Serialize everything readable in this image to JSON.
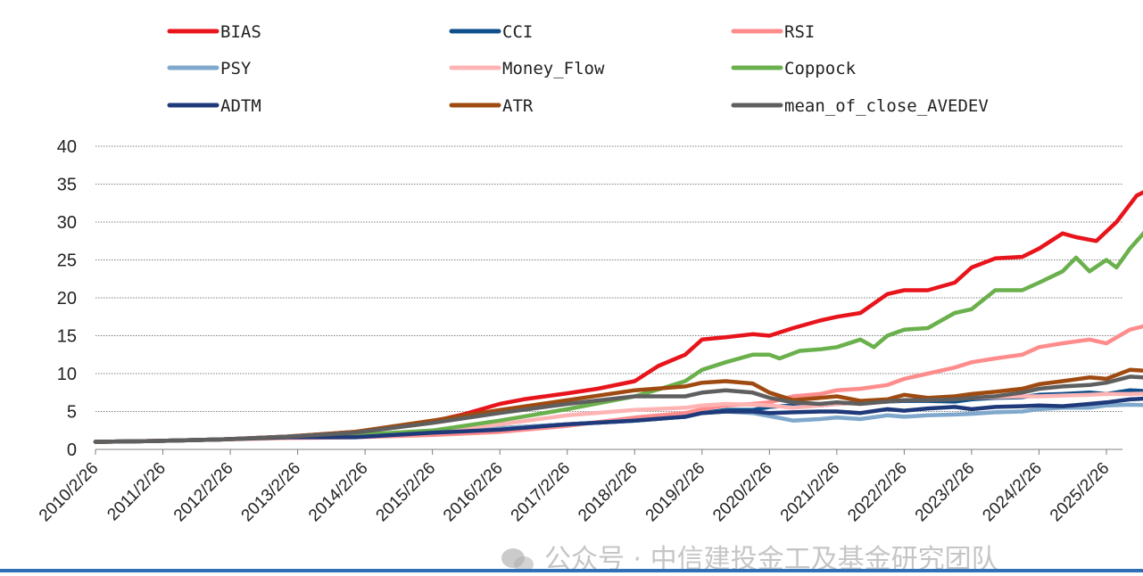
{
  "chart_data": {
    "type": "line",
    "title": "",
    "xlabel": "",
    "ylabel": "",
    "ylim": [
      0,
      40
    ],
    "yticks": [
      0,
      5,
      10,
      15,
      20,
      25,
      30,
      35,
      40
    ],
    "grid": true,
    "legend_position": "top",
    "x_start_year": 2010.15,
    "x_end_year": 2025.9,
    "x_tick_years": [
      2010.15,
      2011.15,
      2012.15,
      2013.15,
      2014.15,
      2015.15,
      2016.15,
      2017.15,
      2018.15,
      2019.15,
      2020.15,
      2021.15,
      2022.15,
      2023.15,
      2024.15,
      2025.15
    ],
    "x_tick_labels": [
      "2010/2/26",
      "2011/2/26",
      "2012/2/26",
      "2013/2/26",
      "2014/2/26",
      "2015/2/26",
      "2016/2/26",
      "2017/2/26",
      "2018/2/26",
      "2019/2/26",
      "2020/2/26",
      "2021/2/26",
      "2022/2/26",
      "2023/2/26",
      "2024/2/26",
      "2025/2/26"
    ],
    "series": [
      {
        "name": "BIAS",
        "color": "#e8141b",
        "x": [
          2010.15,
          2011.0,
          2012.0,
          2013.0,
          2014.0,
          2014.6,
          2015.15,
          2015.6,
          2016.15,
          2016.5,
          2017.15,
          2017.6,
          2018.15,
          2018.5,
          2018.9,
          2019.15,
          2019.5,
          2019.9,
          2020.15,
          2020.5,
          2020.9,
          2021.15,
          2021.5,
          2021.9,
          2022.15,
          2022.5,
          2022.9,
          2023.15,
          2023.5,
          2023.9,
          2024.15,
          2024.5,
          2024.7,
          2025.0,
          2025.3,
          2025.6,
          2025.9
        ],
        "y": [
          1.0,
          1.1,
          1.3,
          1.7,
          2.3,
          2.9,
          3.7,
          4.6,
          6.0,
          6.6,
          7.4,
          8.0,
          9.0,
          11.0,
          12.5,
          14.5,
          14.8,
          15.2,
          15.0,
          16.0,
          17.0,
          17.5,
          18.0,
          20.5,
          21.0,
          21.0,
          22.0,
          24.0,
          25.2,
          25.4,
          26.5,
          28.5,
          28.0,
          27.5,
          30.0,
          33.5,
          34.8
        ]
      },
      {
        "name": "CCI",
        "color": "#0d4f8b",
        "x": [
          2010.15,
          2011.0,
          2012.0,
          2013.0,
          2014.0,
          2015.15,
          2016.15,
          2017.15,
          2018.15,
          2018.9,
          2019.15,
          2019.5,
          2019.9,
          2020.15,
          2020.5,
          2020.9,
          2021.15,
          2021.5,
          2021.9,
          2022.15,
          2022.5,
          2022.9,
          2023.15,
          2023.5,
          2023.9,
          2024.15,
          2024.5,
          2024.9,
          2025.15,
          2025.5,
          2025.9
        ],
        "y": [
          1.0,
          1.1,
          1.3,
          1.6,
          1.7,
          2.2,
          2.8,
          3.3,
          3.8,
          4.3,
          4.8,
          5.2,
          5.2,
          5.6,
          5.8,
          5.8,
          6.0,
          6.2,
          6.3,
          6.4,
          6.4,
          6.3,
          6.6,
          6.8,
          6.9,
          7.2,
          7.3,
          7.5,
          7.3,
          7.8,
          7.6
        ]
      },
      {
        "name": "RSI",
        "color": "#ff8c8c",
        "x": [
          2010.15,
          2011.0,
          2012.0,
          2013.0,
          2014.0,
          2015.15,
          2016.15,
          2017.15,
          2018.15,
          2018.9,
          2019.15,
          2019.5,
          2019.9,
          2020.15,
          2020.5,
          2020.9,
          2021.15,
          2021.5,
          2021.9,
          2022.15,
          2022.5,
          2022.9,
          2023.15,
          2023.5,
          2023.9,
          2024.15,
          2024.5,
          2024.9,
          2025.15,
          2025.5,
          2025.9
        ],
        "y": [
          1.0,
          1.1,
          1.3,
          1.5,
          1.6,
          1.9,
          2.3,
          3.1,
          4.2,
          4.8,
          5.3,
          5.8,
          6.0,
          6.2,
          7.0,
          7.3,
          7.8,
          8.0,
          8.5,
          9.3,
          10.0,
          10.8,
          11.5,
          12.0,
          12.5,
          13.5,
          14.0,
          14.5,
          14.0,
          15.8,
          16.7
        ]
      },
      {
        "name": "PSY",
        "color": "#7fa8cc",
        "x": [
          2010.15,
          2011.0,
          2012.0,
          2013.0,
          2014.0,
          2015.15,
          2016.15,
          2017.15,
          2018.15,
          2018.9,
          2019.15,
          2019.5,
          2019.9,
          2020.15,
          2020.5,
          2020.9,
          2021.15,
          2021.5,
          2021.9,
          2022.15,
          2022.5,
          2022.9,
          2023.15,
          2023.5,
          2023.9,
          2024.15,
          2024.5,
          2024.9,
          2025.15,
          2025.5,
          2025.9
        ],
        "y": [
          1.0,
          1.1,
          1.3,
          1.6,
          1.7,
          2.2,
          2.8,
          3.3,
          3.8,
          4.3,
          4.8,
          5.0,
          4.8,
          4.4,
          3.8,
          4.0,
          4.2,
          4.0,
          4.5,
          4.3,
          4.5,
          4.6,
          4.7,
          4.9,
          5.0,
          5.3,
          5.5,
          5.5,
          5.8,
          5.9,
          5.8
        ]
      },
      {
        "name": "Money_Flow",
        "color": "#ffb4b4",
        "x": [
          2010.15,
          2011.0,
          2012.0,
          2013.0,
          2014.0,
          2015.15,
          2016.15,
          2017.15,
          2018.15,
          2018.9,
          2019.15,
          2019.5,
          2019.9,
          2020.15,
          2020.5,
          2020.9,
          2021.15,
          2021.5,
          2021.9,
          2022.15,
          2022.5,
          2022.9,
          2023.15,
          2023.5,
          2023.9,
          2024.15,
          2024.5,
          2024.9,
          2025.15,
          2025.5,
          2025.9
        ],
        "y": [
          1.0,
          1.1,
          1.3,
          1.6,
          1.8,
          2.3,
          3.3,
          4.5,
          5.2,
          5.5,
          5.8,
          6.0,
          5.9,
          5.8,
          5.5,
          5.8,
          6.0,
          6.2,
          6.3,
          6.5,
          6.6,
          6.7,
          6.8,
          6.9,
          7.0,
          7.0,
          7.1,
          7.2,
          7.3,
          7.3,
          7.4
        ]
      },
      {
        "name": "Coppock",
        "color": "#6ab04c",
        "x": [
          2010.15,
          2011.0,
          2012.0,
          2013.0,
          2014.0,
          2015.15,
          2016.15,
          2017.15,
          2018.15,
          2018.5,
          2018.9,
          2019.15,
          2019.5,
          2019.9,
          2020.15,
          2020.3,
          2020.6,
          2020.9,
          2021.15,
          2021.5,
          2021.7,
          2021.9,
          2022.15,
          2022.5,
          2022.9,
          2023.15,
          2023.5,
          2023.9,
          2024.15,
          2024.5,
          2024.7,
          2024.9,
          2025.15,
          2025.3,
          2025.5,
          2025.7,
          2025.9
        ],
        "y": [
          1.0,
          1.1,
          1.3,
          1.6,
          1.9,
          2.5,
          3.8,
          5.3,
          7.0,
          7.9,
          9.0,
          10.5,
          11.5,
          12.5,
          12.5,
          12.0,
          13.0,
          13.2,
          13.5,
          14.5,
          13.5,
          15.0,
          15.8,
          16.0,
          18.0,
          18.5,
          21.0,
          21.0,
          22.0,
          23.5,
          25.3,
          23.5,
          25.0,
          24.0,
          26.5,
          28.5,
          30.8
        ]
      },
      {
        "name": "ADTM",
        "color": "#1f3a7a",
        "x": [
          2010.15,
          2011.0,
          2012.0,
          2013.0,
          2014.0,
          2015.15,
          2016.15,
          2017.15,
          2018.15,
          2018.9,
          2019.15,
          2019.5,
          2019.9,
          2020.15,
          2020.5,
          2020.9,
          2021.15,
          2021.5,
          2021.9,
          2022.15,
          2022.5,
          2022.9,
          2023.15,
          2023.5,
          2023.9,
          2024.15,
          2024.5,
          2024.9,
          2025.15,
          2025.5,
          2025.9
        ],
        "y": [
          1.0,
          1.1,
          1.3,
          1.6,
          1.6,
          2.2,
          2.6,
          3.3,
          3.8,
          4.3,
          4.8,
          5.0,
          5.0,
          4.8,
          4.9,
          5.0,
          5.0,
          4.8,
          5.3,
          5.1,
          5.4,
          5.6,
          5.3,
          5.6,
          5.7,
          5.8,
          5.7,
          6.0,
          6.2,
          6.6,
          6.8
        ]
      },
      {
        "name": "ATR",
        "color": "#9e4a10",
        "x": [
          2010.15,
          2011.0,
          2012.0,
          2013.0,
          2014.0,
          2015.15,
          2016.15,
          2017.15,
          2018.15,
          2018.9,
          2019.15,
          2019.5,
          2019.9,
          2020.15,
          2020.5,
          2020.9,
          2021.15,
          2021.5,
          2021.9,
          2022.15,
          2022.5,
          2022.9,
          2023.15,
          2023.5,
          2023.9,
          2024.15,
          2024.5,
          2024.9,
          2025.15,
          2025.5,
          2025.9
        ],
        "y": [
          1.0,
          1.1,
          1.3,
          1.7,
          2.3,
          3.8,
          5.2,
          6.5,
          7.8,
          8.3,
          8.8,
          9.0,
          8.7,
          7.5,
          6.5,
          6.8,
          7.0,
          6.4,
          6.6,
          7.2,
          6.8,
          7.0,
          7.3,
          7.6,
          8.0,
          8.6,
          9.0,
          9.5,
          9.3,
          10.5,
          10.3
        ]
      },
      {
        "name": "mean_of_close_AVEDEV",
        "color": "#5f5f5f",
        "x": [
          2010.15,
          2011.0,
          2012.0,
          2013.0,
          2014.0,
          2015.15,
          2016.15,
          2017.15,
          2018.15,
          2018.9,
          2019.15,
          2019.5,
          2019.9,
          2020.15,
          2020.5,
          2020.9,
          2021.15,
          2021.5,
          2021.9,
          2022.15,
          2022.5,
          2022.9,
          2023.15,
          2023.5,
          2023.9,
          2024.15,
          2024.5,
          2024.9,
          2025.15,
          2025.5,
          2025.9
        ],
        "y": [
          1.0,
          1.1,
          1.3,
          1.7,
          2.2,
          3.5,
          4.8,
          6.0,
          7.0,
          7.0,
          7.5,
          7.8,
          7.5,
          6.8,
          6.2,
          6.0,
          6.2,
          6.0,
          6.3,
          6.5,
          6.5,
          6.6,
          6.8,
          7.0,
          7.5,
          8.0,
          8.3,
          8.5,
          8.8,
          9.6,
          9.4
        ]
      }
    ]
  },
  "watermark": {
    "text": "公众号 · 中信建投金工及基金研究团队"
  }
}
